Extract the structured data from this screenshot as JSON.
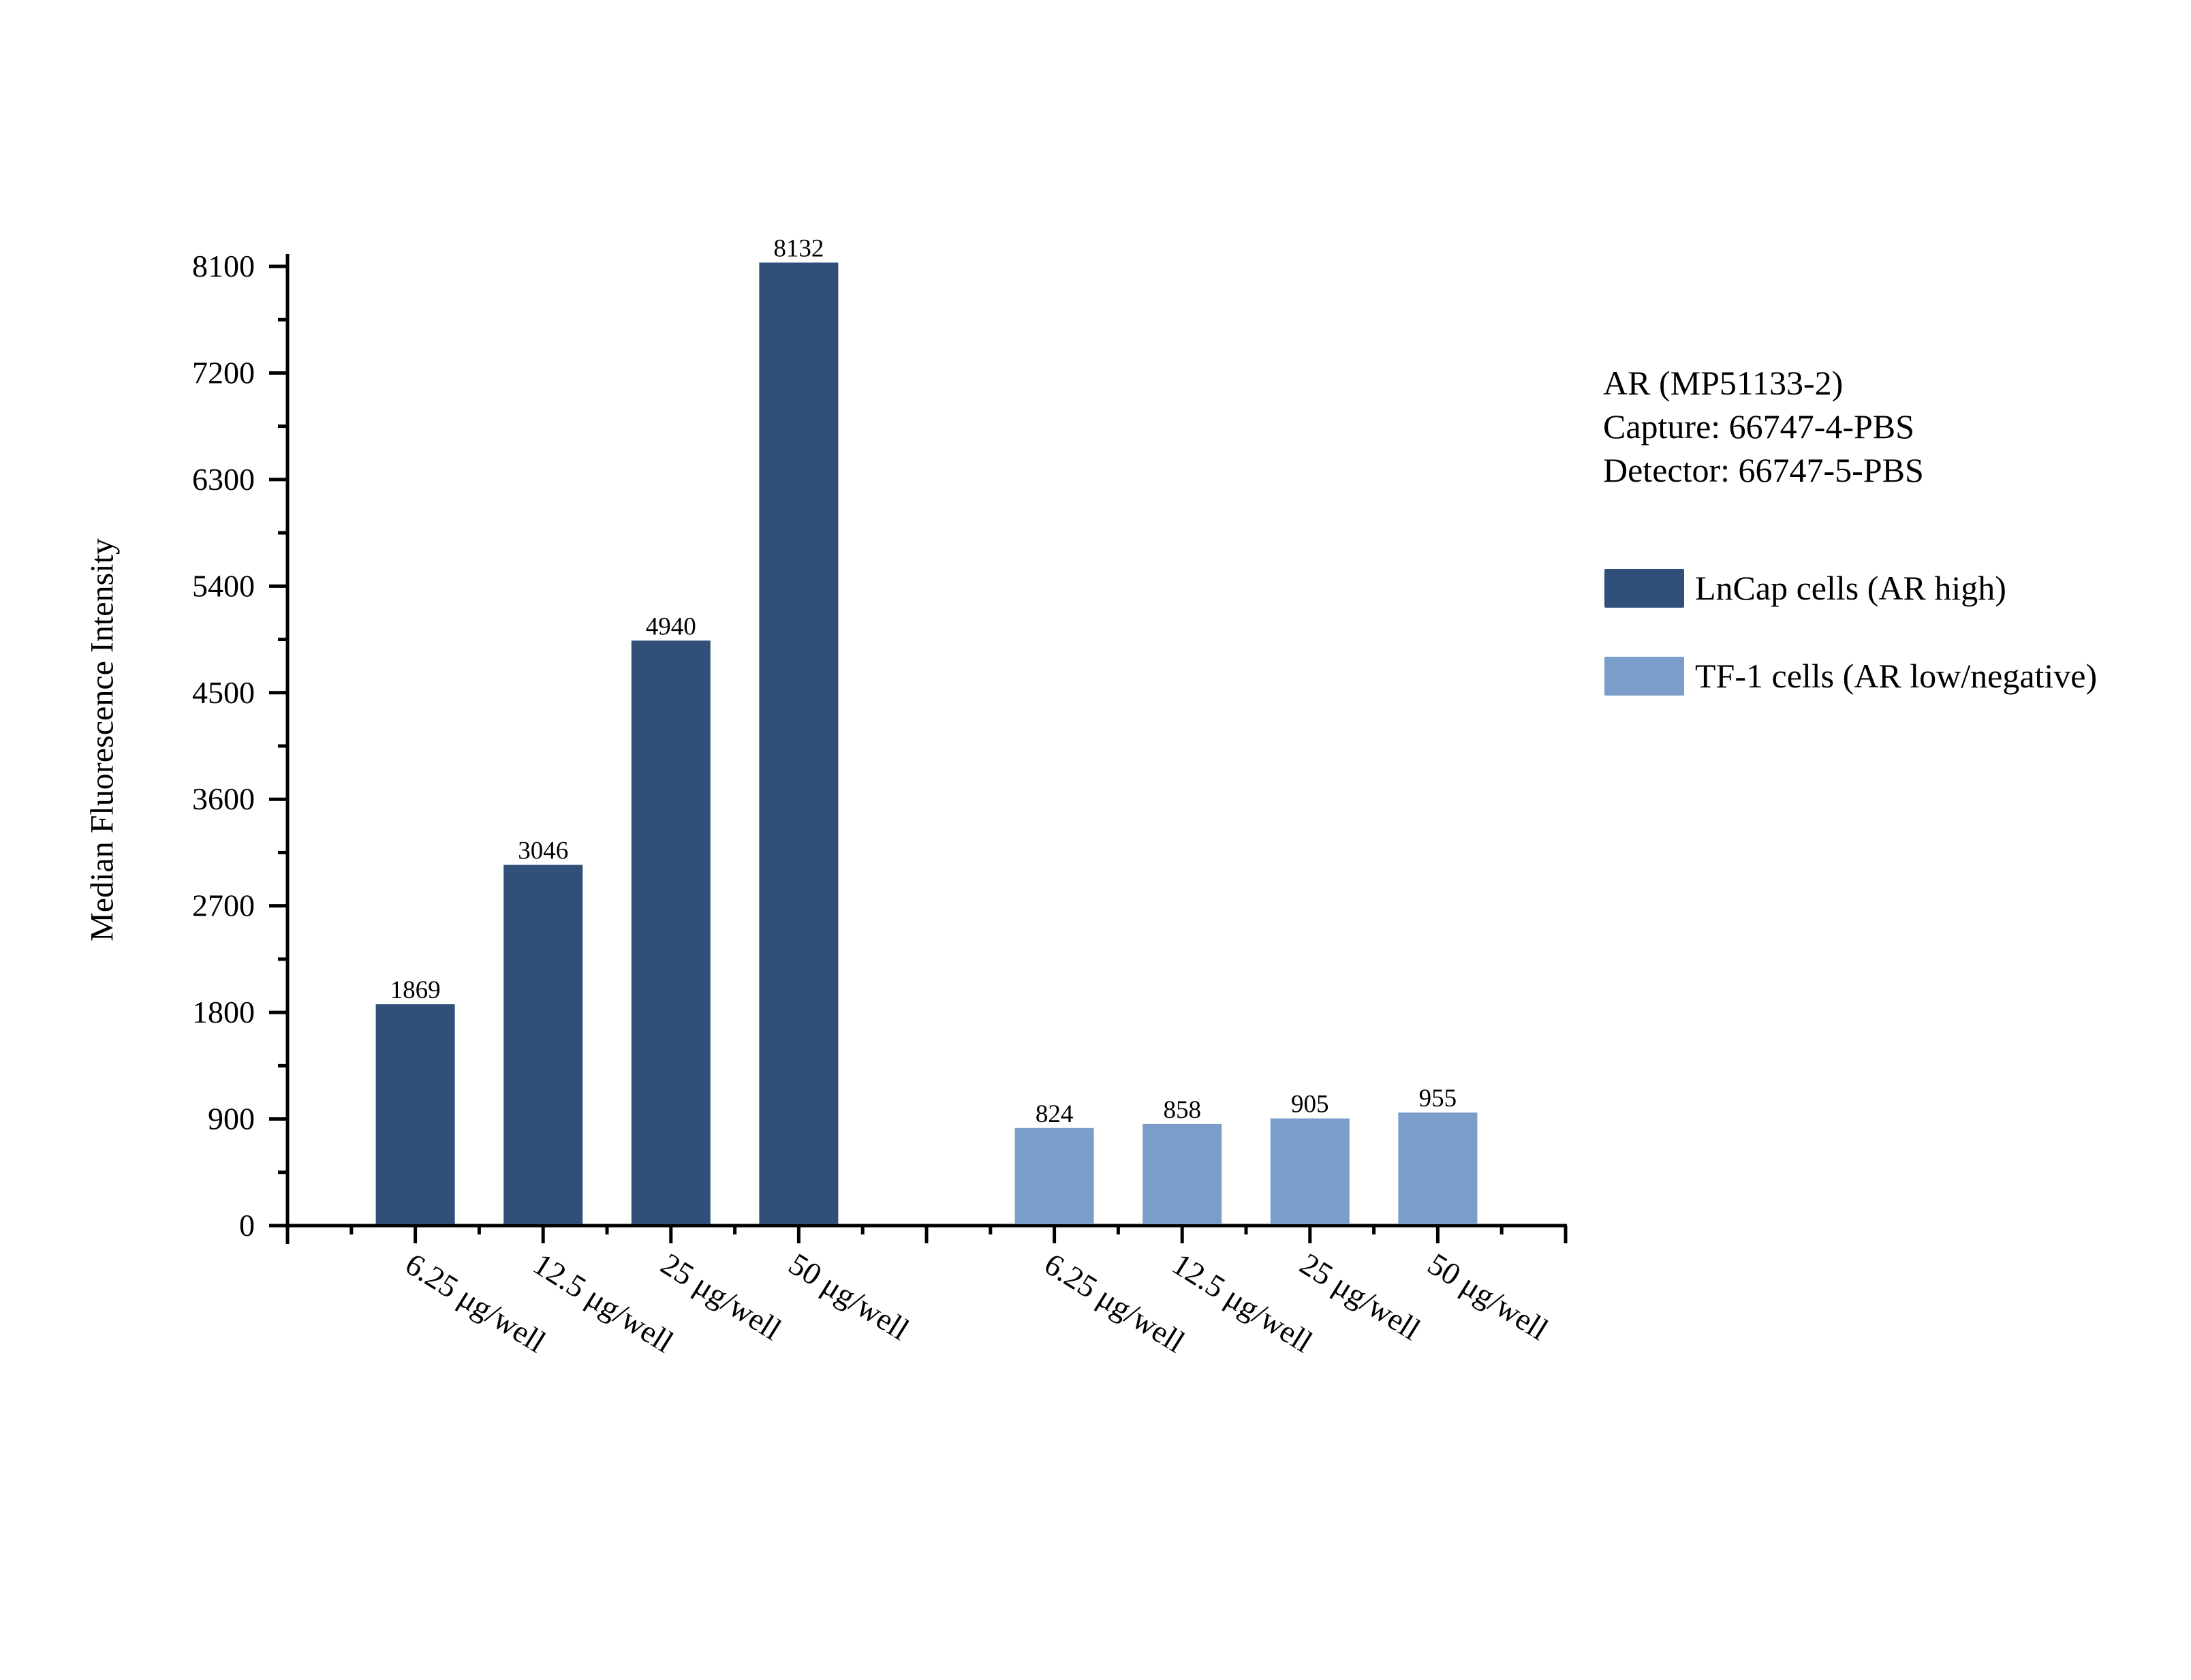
{
  "chart_data": {
    "type": "bar",
    "title": "",
    "xlabel": "",
    "ylabel": "Median Fluorescence Intensity",
    "ylim": [
      0,
      8100
    ],
    "yticks": [
      0,
      900,
      1800,
      2700,
      3600,
      4500,
      5400,
      6300,
      7200,
      8100
    ],
    "grid": false,
    "legend_position": "right",
    "annotation_lines": [
      "AR (MP51133-2)",
      "Capture: 66747-4-PBS",
      "Detector: 66747-5-PBS"
    ],
    "groups": [
      {
        "name": "LnCap cells (AR high)",
        "color": "#30507A",
        "categories": [
          "6.25 μg/well",
          "12.5 μg/well",
          "25 μg/well",
          "50 μg/well"
        ],
        "values": [
          1869,
          3046,
          4940,
          8132
        ]
      },
      {
        "name": "TF-1 cells (AR low/negative)",
        "color": "#7B9DCA",
        "categories": [
          "6.25 μg/well",
          "12.5 μg/well",
          "25 μg/well",
          "50 μg/well"
        ],
        "values": [
          824,
          858,
          905,
          955
        ]
      }
    ],
    "series": [
      {
        "name": "LnCap cells (AR high)",
        "values": [
          1869,
          3046,
          4940,
          8132,
          null,
          null,
          null,
          null
        ]
      },
      {
        "name": "TF-1 cells (AR low/negative)",
        "values": [
          null,
          null,
          null,
          null,
          824,
          858,
          905,
          955
        ]
      }
    ],
    "categories": [
      "6.25 μg/well",
      "12.5 μg/well",
      "25 μg/well",
      "50 μg/well",
      "6.25 μg/well",
      "12.5 μg/well",
      "25 μg/well",
      "50 μg/well"
    ]
  },
  "y_axis": {
    "title": "Median Fluorescence Intensity"
  },
  "legend": {
    "info_lines": [
      "AR (MP51133-2)",
      "Capture: 66747-4-PBS",
      "Detector: 66747-5-PBS"
    ],
    "items": [
      {
        "label": "LnCap cells (AR high)",
        "color": "#30507A"
      },
      {
        "label": "TF-1 cells (AR low/negative)",
        "color": "#7B9DCA"
      }
    ]
  }
}
